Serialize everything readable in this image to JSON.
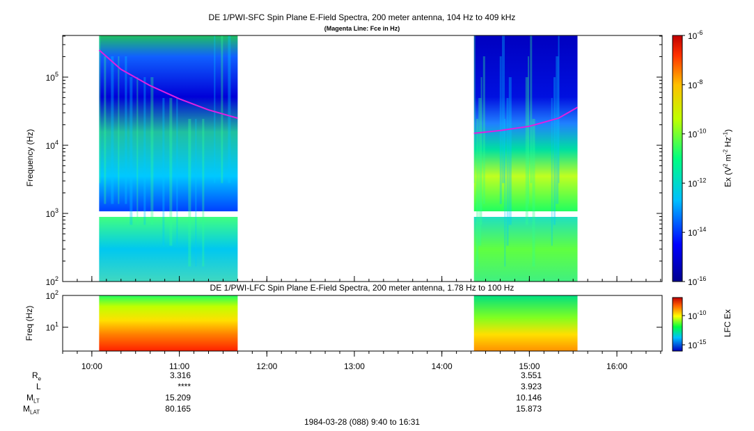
{
  "chart_data": [
    {
      "type": "heatmap",
      "title": "DE 1/PWI-SFC  Spin Plane E-Field Spectra, 200 meter antenna, 104 Hz to 409 kHz",
      "subtitle": "(Magenta Line: Fce in Hz)",
      "ylabel": "Frequency (Hz)",
      "yscale": "log",
      "ylim": [
        100,
        409000
      ],
      "y_ticks": [
        {
          "base": "10",
          "exp": "2",
          "value": 100
        },
        {
          "base": "10",
          "exp": "3",
          "value": 1000
        },
        {
          "base": "10",
          "exp": "4",
          "value": 10000
        },
        {
          "base": "10",
          "exp": "5",
          "value": 100000
        }
      ],
      "xlim": [
        "09:40",
        "16:31"
      ],
      "data_intervals": [
        [
          "10:05",
          "11:40"
        ],
        [
          "14:22",
          "15:33"
        ]
      ],
      "colorbar": {
        "label_parts": [
          "Ex (V",
          "2",
          " m",
          "-2",
          " Hz",
          "-1",
          ")"
        ],
        "scale": "log",
        "range": [
          1e-16,
          1e-06
        ],
        "ticks": [
          {
            "base": "10",
            "exp": "-6"
          },
          {
            "base": "10",
            "exp": "-8"
          },
          {
            "base": "10",
            "exp": "-10"
          },
          {
            "base": "10",
            "exp": "-12"
          },
          {
            "base": "10",
            "exp": "-14"
          },
          {
            "base": "10",
            "exp": "-16"
          }
        ]
      },
      "fce_line": {
        "color": "#e020e0",
        "segments": [
          [
            [
              "10:05",
              250000
            ],
            [
              "10:20",
              130000
            ],
            [
              "10:40",
              75000
            ],
            [
              "11:00",
              48000
            ],
            [
              "11:20",
              33000
            ],
            [
              "11:40",
              25000
            ]
          ],
          [
            [
              "14:22",
              15000
            ],
            [
              "14:40",
              16500
            ],
            [
              "15:00",
              19000
            ],
            [
              "15:20",
              25000
            ],
            [
              "15:33",
              36000
            ]
          ]
        ]
      }
    },
    {
      "type": "heatmap",
      "title": "DE 1/PWI-LFC  Spin Plane E-Field Spectra, 200 meter antenna, 1.78 Hz to 100 Hz",
      "ylabel": "Freq (Hz)",
      "yscale": "log",
      "ylim": [
        1.78,
        100
      ],
      "y_ticks": [
        {
          "base": "10",
          "exp": "1",
          "value": 10
        },
        {
          "base": "10",
          "exp": "2",
          "value": 100
        }
      ],
      "data_intervals": [
        [
          "10:05",
          "11:40"
        ],
        [
          "14:22",
          "15:33"
        ]
      ],
      "colorbar": {
        "label": "LFC Ex",
        "ticks": [
          {
            "base": "10",
            "exp": "-10"
          },
          {
            "base": "10",
            "exp": "-15"
          }
        ]
      }
    }
  ],
  "x_ticks": [
    "10:00",
    "11:00",
    "12:00",
    "13:00",
    "14:00",
    "15:00",
    "16:00"
  ],
  "orbit_table": {
    "rows": [
      {
        "label": "R",
        "sub": "e",
        "values": [
          "3.316",
          "3.551"
        ]
      },
      {
        "label": "L",
        "sub": "",
        "values": [
          "****",
          "3.923"
        ]
      },
      {
        "label": "M",
        "sub": "LT",
        "values": [
          "15.209",
          "10.146"
        ]
      },
      {
        "label": "M",
        "sub": "LAT",
        "values": [
          "80.165",
          "15.873"
        ]
      }
    ]
  },
  "footer": "1984-03-28 (088) 9:40 to 16:31"
}
